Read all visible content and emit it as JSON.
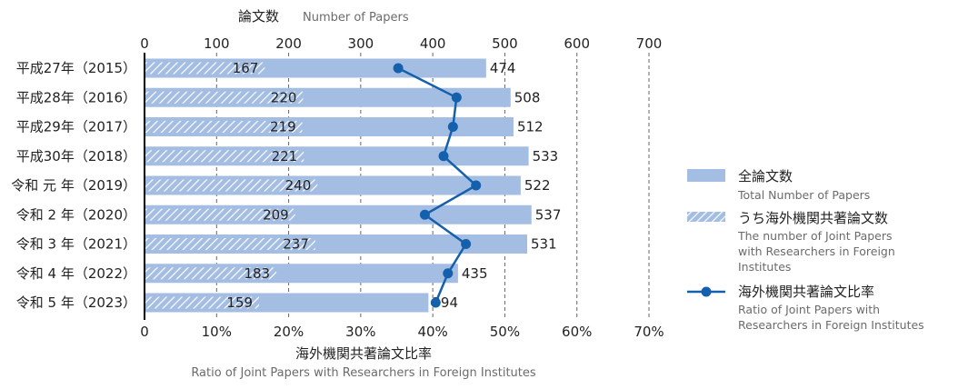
{
  "chart_data": {
    "type": "bar",
    "top_axis_title": "論文数",
    "top_axis_subtitle": "Number of Papers",
    "bottom_axis_title": "海外機関共著論文比率",
    "bottom_axis_subtitle": "Ratio of Joint Papers with Researchers in Foreign Institutes",
    "top_axis_ticks": [
      0,
      100,
      200,
      300,
      400,
      500,
      600,
      700
    ],
    "bottom_axis_ticks": [
      "0",
      "10%",
      "20%",
      "30%",
      "40%",
      "50%",
      "60%",
      "70%"
    ],
    "xlim": [
      0,
      700
    ],
    "ratio_lim": [
      0,
      70
    ],
    "categories": [
      "平成27年（2015）",
      "平成28年（2016）",
      "平成29年（2017）",
      "平成30年（2018）",
      "令和 元 年（2019）",
      "令和 2 年（2020）",
      "令和 3 年（2021）",
      "令和 4 年（2022）",
      "令和 5 年（2023）"
    ],
    "series": [
      {
        "name": "全論文数",
        "name_en": "Total Number of Papers",
        "values": [
          474,
          508,
          512,
          533,
          522,
          537,
          531,
          435,
          394
        ]
      },
      {
        "name": "うち海外機関共著論文数",
        "name_en": "The number of Joint Papers with Researchers in Foreign Institutes",
        "values": [
          167,
          220,
          219,
          221,
          240,
          209,
          237,
          183,
          159
        ]
      },
      {
        "name": "海外機関共著論文比率",
        "name_en": "Ratio of Joint Papers with Researchers in Foreign Institutes",
        "values": [
          35.2,
          43.3,
          42.8,
          41.5,
          46.0,
          38.9,
          44.6,
          42.1,
          40.4
        ]
      }
    ],
    "legend_position": "right",
    "colors": {
      "bar": "#a4bde2",
      "hatch": "#ffffff",
      "line": "#1560ac",
      "axis": "#000000",
      "grid": "#666666",
      "text": "#222222",
      "subtext": "#6b6b6b"
    }
  }
}
